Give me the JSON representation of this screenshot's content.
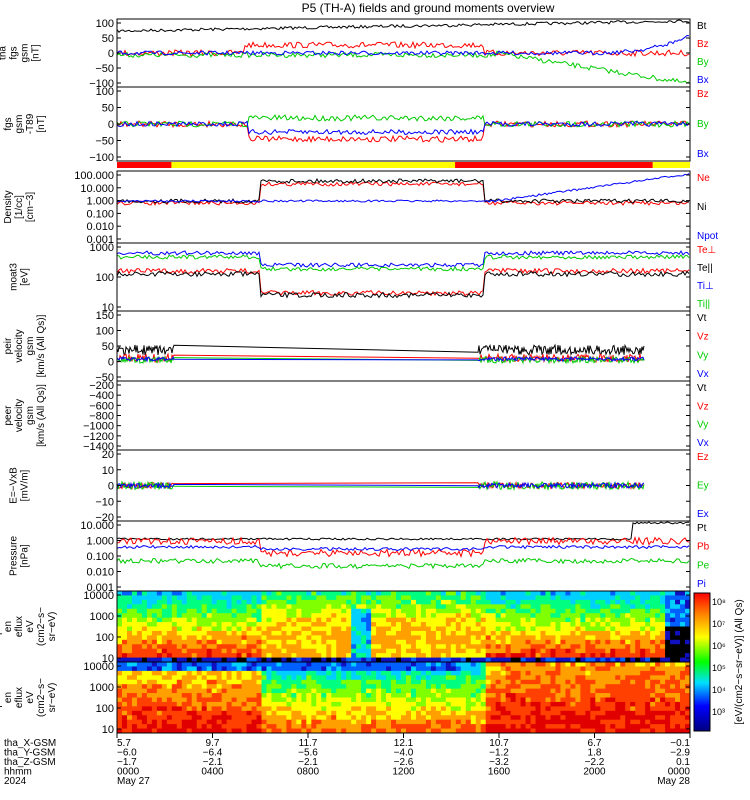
{
  "title": "P5 (TH-A) fields and ground moments overview",
  "colors": {
    "black": "#000000",
    "red": "#ff0000",
    "green": "#00cc00",
    "blue": "#0000ff",
    "yellow": "#ffff00",
    "magenta": "#ff00ff"
  },
  "chart_data": [
    {
      "id": "fgs_full",
      "type": "line",
      "ylabel": [
        "tha",
        "fgs",
        "gsm",
        "[nT]"
      ],
      "ticks": [
        "100",
        "50",
        "0",
        "−50",
        "−100"
      ],
      "ylim": [
        -100,
        100
      ],
      "legend": [
        {
          "name": "Bt",
          "color": "black"
        },
        {
          "name": "Bz",
          "color": "red"
        },
        {
          "name": "By",
          "color": "green"
        },
        {
          "name": "Bx",
          "color": "blue"
        }
      ]
    },
    {
      "id": "fgs_detrended",
      "type": "line",
      "ylabel": [
        "tha",
        "fgs",
        "gsm",
        "-T89",
        "[nT]"
      ],
      "ticks": [
        "100",
        "50",
        "0",
        "−50",
        "−100"
      ],
      "ylim": [
        -120,
        120
      ],
      "legend": [
        {
          "name": "Bz",
          "color": "red"
        },
        {
          "name": "By",
          "color": "green"
        },
        {
          "name": "Bx",
          "color": "blue"
        }
      ]
    },
    {
      "id": "density",
      "type": "line",
      "scale": "log",
      "ylabel": [
        "Density",
        "[1/cc]",
        "[cm−3]"
      ],
      "ticks": [
        "100.000",
        "10.000",
        "1.000",
        "0.100",
        "0.010",
        "0.001"
      ],
      "legend": [
        {
          "name": "Ne",
          "color": "red"
        },
        {
          "name": "Ni",
          "color": "black"
        },
        {
          "name": "Npot",
          "color": "blue"
        }
      ]
    },
    {
      "id": "temperature",
      "type": "line",
      "scale": "log",
      "ylabel": [
        "moat3",
        "[eV]"
      ],
      "ticks": [
        "1000",
        "100",
        "10"
      ],
      "legend": [
        {
          "name": "Te⊥",
          "color": "red"
        },
        {
          "name": "Te||",
          "color": "black"
        },
        {
          "name": "Ti⊥",
          "color": "blue"
        },
        {
          "name": "Ti||",
          "color": "green"
        }
      ]
    },
    {
      "id": "peir_velocity",
      "type": "line",
      "ylabel": [
        "tha",
        "peir",
        "velocity",
        "gsm",
        "[km/s (All Qs)]"
      ],
      "ticks": [
        "150",
        "100",
        "50",
        "0",
        "−50"
      ],
      "ylim": [
        -60,
        170
      ],
      "legend": [
        {
          "name": "Vt",
          "color": "black"
        },
        {
          "name": "Vz",
          "color": "red"
        },
        {
          "name": "Vy",
          "color": "green"
        },
        {
          "name": "Vx",
          "color": "blue"
        }
      ]
    },
    {
      "id": "peer_velocity",
      "type": "line",
      "ylabel": [
        "tha",
        "peer",
        "velocity",
        "gsm",
        "[km/s (All Qs)]"
      ],
      "ticks": [
        "−200",
        "−400",
        "−600",
        "−800",
        "−1000",
        "−1200",
        "−1400"
      ],
      "ylim": [
        -1400,
        0
      ],
      "legend": [
        {
          "name": "Vt",
          "color": "black"
        },
        {
          "name": "Vz",
          "color": "red"
        },
        {
          "name": "Vy",
          "color": "green"
        },
        {
          "name": "Vx",
          "color": "blue"
        }
      ]
    },
    {
      "id": "e_field",
      "type": "line",
      "ylabel": [
        "E=−VxB",
        "[mV/m]"
      ],
      "ticks": [
        "20",
        "10",
        "0",
        "−10",
        "−20"
      ],
      "ylim": [
        -20,
        20
      ],
      "legend": [
        {
          "name": "Ez",
          "color": "red"
        },
        {
          "name": "Ey",
          "color": "green"
        },
        {
          "name": "Ex",
          "color": "blue"
        }
      ]
    },
    {
      "id": "pressure",
      "type": "line",
      "scale": "log",
      "ylabel": [
        "Pressure",
        "[nPa]"
      ],
      "ticks": [
        "10.000",
        "1.000",
        "0.100",
        "0.010",
        "0.001"
      ],
      "legend": [
        {
          "name": "Pt",
          "color": "black"
        },
        {
          "name": "Pb",
          "color": "red"
        },
        {
          "name": "Pe",
          "color": "green"
        },
        {
          "name": "Pi",
          "color": "blue"
        }
      ]
    },
    {
      "id": "peir_spectrogram",
      "type": "heatmap",
      "ylabel": [
        "tha",
        "peir",
        "en",
        "eflux",
        "eV",
        "(cm2−s−",
        "sr−eV)"
      ],
      "ticks": [
        "10000",
        "1000",
        "100",
        "10"
      ]
    },
    {
      "id": "peer_spectrogram",
      "type": "heatmap",
      "ylabel": [
        "tha",
        "peer",
        "en",
        "eflux",
        "eV",
        "(cm2−s−",
        "sr−eV)"
      ],
      "ticks": [
        "10000",
        "1000",
        "100",
        "10"
      ]
    }
  ],
  "colorbar": {
    "label": "[eV/(cm2−s−sr−eV)] (All Qs)",
    "ticks": [
      "10⁸",
      "10⁷",
      "10⁶",
      "10⁵",
      "10⁴",
      "10³"
    ]
  },
  "mode_bar": [
    {
      "from": 0.0,
      "to": 0.095,
      "color": "red"
    },
    {
      "from": 0.095,
      "to": 0.59,
      "color": "yellow"
    },
    {
      "from": 0.59,
      "to": 0.935,
      "color": "red"
    },
    {
      "from": 0.935,
      "to": 1.0,
      "color": "yellow"
    }
  ],
  "x_axis": {
    "rows": [
      {
        "label": "tha_X-GSM",
        "values": [
          "5.7",
          "9.7",
          "11.7",
          "12.1",
          "10.7",
          "6.7",
          "−0.1"
        ]
      },
      {
        "label": "tha_Y-GSM",
        "values": [
          "−6.0",
          "−6.4",
          "−5.6",
          "−4.0",
          "−1.2",
          "1.8",
          "−2.9"
        ]
      },
      {
        "label": "tha_Z-GSM",
        "values": [
          "−1.7",
          "−2.1",
          "−2.1",
          "−2.6",
          "−3.2",
          "−2.2",
          "0.1"
        ]
      },
      {
        "label": "hhmm",
        "values": [
          "0000",
          "0400",
          "0800",
          "1200",
          "1600",
          "2000",
          "0000"
        ]
      },
      {
        "label": "2024",
        "values": [
          "May 27",
          "",
          "",
          "",
          "",
          "",
          "May 28"
        ]
      }
    ]
  }
}
